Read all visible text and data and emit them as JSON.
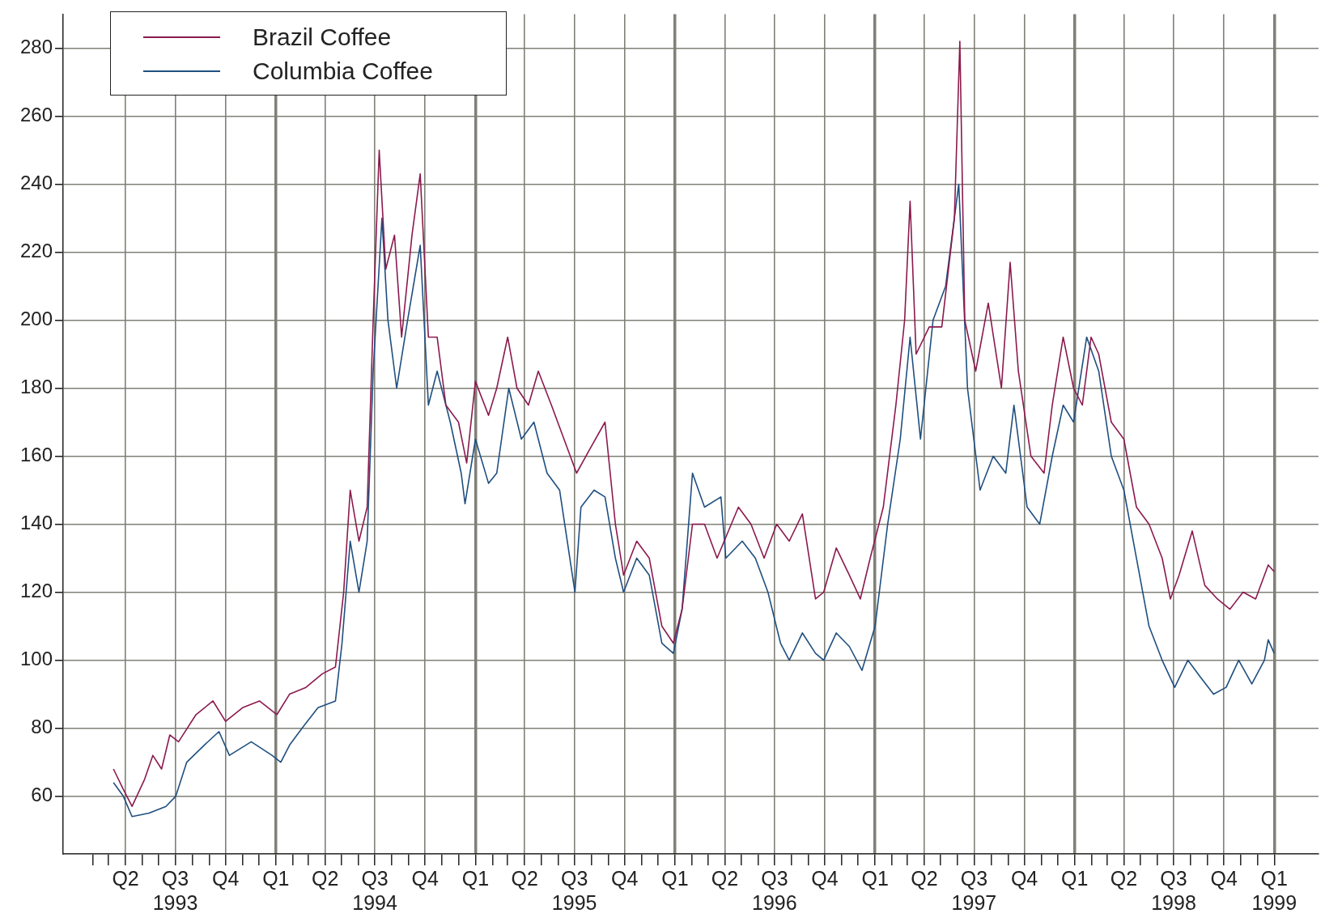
{
  "chart_data": {
    "type": "line",
    "legend": "top left",
    "grid": true,
    "marker": "none",
    "line_style": "solid",
    "xlim": [
      "1992-12-08",
      "1999-03-23"
    ],
    "ylim": [
      43,
      290
    ],
    "yticks": [
      60,
      80,
      100,
      120,
      140,
      160,
      180,
      200,
      220,
      240,
      260,
      280
    ],
    "xticks": [
      {
        "value": "1993-02-01",
        "label": null
      },
      {
        "value": "1993-03-01",
        "label": null
      },
      {
        "value": "1993-04-01",
        "label": "Q2"
      },
      {
        "value": "1993-05-01",
        "label": null
      },
      {
        "value": "1993-06-01",
        "label": null
      },
      {
        "value": "1993-07-01",
        "label": "Q3\n1993"
      },
      {
        "value": "1993-08-01",
        "label": null
      },
      {
        "value": "1993-09-01",
        "label": null
      },
      {
        "value": "1993-10-01",
        "label": "Q4"
      },
      {
        "value": "1993-11-01",
        "label": null
      },
      {
        "value": "1993-12-01",
        "label": null
      },
      {
        "value": "1994-01-01",
        "label": "Q1"
      },
      {
        "value": "1994-02-01",
        "label": null
      },
      {
        "value": "1994-03-01",
        "label": null
      },
      {
        "value": "1994-04-01",
        "label": "Q2"
      },
      {
        "value": "1994-05-01",
        "label": null
      },
      {
        "value": "1994-06-01",
        "label": null
      },
      {
        "value": "1994-07-01",
        "label": "Q3\n1994"
      },
      {
        "value": "1994-08-01",
        "label": null
      },
      {
        "value": "1994-09-01",
        "label": null
      },
      {
        "value": "1994-10-01",
        "label": "Q4"
      },
      {
        "value": "1994-11-01",
        "label": null
      },
      {
        "value": "1994-12-01",
        "label": null
      },
      {
        "value": "1995-01-01",
        "label": "Q1"
      },
      {
        "value": "1995-02-01",
        "label": null
      },
      {
        "value": "1995-03-01",
        "label": null
      },
      {
        "value": "1995-04-01",
        "label": "Q2"
      },
      {
        "value": "1995-05-01",
        "label": null
      },
      {
        "value": "1995-06-01",
        "label": null
      },
      {
        "value": "1995-07-01",
        "label": "Q3\n1995"
      },
      {
        "value": "1995-08-01",
        "label": null
      },
      {
        "value": "1995-09-01",
        "label": null
      },
      {
        "value": "1995-10-01",
        "label": "Q4"
      },
      {
        "value": "1995-11-01",
        "label": null
      },
      {
        "value": "1995-12-01",
        "label": null
      },
      {
        "value": "1996-01-01",
        "label": "Q1"
      },
      {
        "value": "1996-02-01",
        "label": null
      },
      {
        "value": "1996-03-01",
        "label": null
      },
      {
        "value": "1996-04-01",
        "label": "Q2"
      },
      {
        "value": "1996-05-01",
        "label": null
      },
      {
        "value": "1996-06-01",
        "label": null
      },
      {
        "value": "1996-07-01",
        "label": "Q3\n1996"
      },
      {
        "value": "1996-08-01",
        "label": null
      },
      {
        "value": "1996-09-01",
        "label": null
      },
      {
        "value": "1996-10-01",
        "label": "Q4"
      },
      {
        "value": "1996-11-01",
        "label": null
      },
      {
        "value": "1996-12-01",
        "label": null
      },
      {
        "value": "1997-01-01",
        "label": "Q1"
      },
      {
        "value": "1997-02-01",
        "label": null
      },
      {
        "value": "1997-03-01",
        "label": null
      },
      {
        "value": "1997-04-01",
        "label": "Q2"
      },
      {
        "value": "1997-05-01",
        "label": null
      },
      {
        "value": "1997-06-01",
        "label": null
      },
      {
        "value": "1997-07-01",
        "label": "Q3\n1997"
      },
      {
        "value": "1997-08-01",
        "label": null
      },
      {
        "value": "1997-09-01",
        "label": null
      },
      {
        "value": "1997-10-01",
        "label": "Q4"
      },
      {
        "value": "1997-11-01",
        "label": null
      },
      {
        "value": "1997-12-01",
        "label": null
      },
      {
        "value": "1998-01-01",
        "label": "Q1"
      },
      {
        "value": "1998-02-01",
        "label": null
      },
      {
        "value": "1998-03-01",
        "label": null
      },
      {
        "value": "1998-04-01",
        "label": "Q2"
      },
      {
        "value": "1998-05-01",
        "label": null
      },
      {
        "value": "1998-06-01",
        "label": null
      },
      {
        "value": "1998-07-01",
        "label": "Q3\n1998"
      },
      {
        "value": "1998-08-01",
        "label": null
      },
      {
        "value": "1998-09-01",
        "label": null
      },
      {
        "value": "1998-10-01",
        "label": "Q4"
      },
      {
        "value": "1998-11-01",
        "label": null
      },
      {
        "value": "1998-12-01",
        "label": null
      },
      {
        "value": "1999-01-01",
        "label": "Q1\n1999"
      }
    ],
    "series": [
      {
        "name": "Brazil Coffee",
        "color": "#8b1a4e",
        "x": [
          "1993-03-10",
          "1993-03-28",
          "1993-04-13",
          "1993-05-06",
          "1993-05-21",
          "1993-06-06",
          "1993-06-21",
          "1993-07-07",
          "1993-08-08",
          "1993-09-08",
          "1993-10-01",
          "1993-11-01",
          "1993-12-02",
          "1994-01-03",
          "1994-01-26",
          "1994-02-25",
          "1994-03-27",
          "1994-04-20",
          "1994-05-05",
          "1994-05-17",
          "1994-06-02",
          "1994-06-17",
          "1994-06-28",
          "1994-07-09",
          "1994-07-21",
          "1994-08-06",
          "1994-08-19",
          "1994-09-07",
          "1994-09-22",
          "1994-10-07",
          "1994-10-23",
          "1994-11-08",
          "1994-12-01",
          "1994-12-16",
          "1995-01-01",
          "1995-01-25",
          "1995-02-09",
          "1995-03-01",
          "1995-03-18",
          "1995-04-08",
          "1995-04-26",
          "1995-05-20",
          "1995-06-12",
          "1995-07-05",
          "1995-07-29",
          "1995-08-26",
          "1995-09-14",
          "1995-09-29",
          "1995-10-23",
          "1995-11-15",
          "1995-12-08",
          "1995-12-29",
          "1996-01-14",
          "1996-02-02",
          "1996-02-24",
          "1996-03-18",
          "1996-04-26",
          "1996-05-19",
          "1996-06-12",
          "1996-07-05",
          "1996-07-28",
          "1996-08-21",
          "1996-09-14",
          "1996-09-29",
          "1996-10-22",
          "1996-11-15",
          "1996-12-05",
          "1996-12-23",
          "1997-01-16",
          "1997-02-08",
          "1997-02-24",
          "1997-03-06",
          "1997-03-17",
          "1997-04-10",
          "1997-05-03",
          "1997-05-26",
          "1997-06-05",
          "1997-06-14",
          "1997-07-04",
          "1997-07-27",
          "1997-08-20",
          "1997-09-05",
          "1997-09-20",
          "1997-10-13",
          "1997-11-06",
          "1997-11-21",
          "1997-12-11",
          "1997-12-30",
          "1998-01-15",
          "1998-01-31",
          "1998-02-14",
          "1998-03-09",
          "1998-04-01",
          "1998-04-24",
          "1998-05-17",
          "1998-06-10",
          "1998-06-25",
          "1998-07-11",
          "1998-08-04",
          "1998-08-27",
          "1998-09-19",
          "1998-10-12",
          "1998-11-05",
          "1998-11-28",
          "1998-12-21",
          "1999-01-01"
        ],
        "values": [
          68,
          62,
          57,
          65,
          72,
          68,
          78,
          76,
          84,
          88,
          82,
          86,
          88,
          84,
          90,
          92,
          96,
          98,
          120,
          150,
          135,
          145,
          200,
          250,
          215,
          225,
          195,
          225,
          243,
          195,
          195,
          175,
          170,
          158,
          182,
          172,
          180,
          195,
          180,
          175,
          185,
          175,
          165,
          155,
          162,
          170,
          140,
          125,
          135,
          130,
          110,
          105,
          115,
          140,
          140,
          130,
          145,
          140,
          130,
          140,
          135,
          143,
          118,
          120,
          133,
          125,
          118,
          130,
          145,
          175,
          200,
          235,
          190,
          198,
          198,
          230,
          282,
          200,
          185,
          205,
          180,
          217,
          185,
          160,
          155,
          175,
          195,
          180,
          175,
          195,
          190,
          170,
          165,
          145,
          140,
          130,
          118,
          125,
          138,
          122,
          118,
          115,
          120,
          118,
          128,
          126
        ]
      },
      {
        "name": "Columbia Coffee",
        "color": "#1f4f7f",
        "x": [
          "1993-03-10",
          "1993-03-28",
          "1993-04-13",
          "1993-05-14",
          "1993-06-14",
          "1993-07-02",
          "1993-07-22",
          "1993-08-23",
          "1993-09-19",
          "1993-10-08",
          "1993-11-17",
          "1993-12-25",
          "1994-01-10",
          "1994-01-26",
          "1994-02-18",
          "1994-03-19",
          "1994-04-20",
          "1994-05-02",
          "1994-05-17",
          "1994-06-02",
          "1994-06-17",
          "1994-06-28",
          "1994-07-14",
          "1994-07-25",
          "1994-08-10",
          "1994-08-30",
          "1994-09-22",
          "1994-10-07",
          "1994-10-23",
          "1994-11-16",
          "1994-12-06",
          "1994-12-13",
          "1995-01-01",
          "1995-01-25",
          "1995-02-09",
          "1995-03-03",
          "1995-03-26",
          "1995-04-18",
          "1995-05-12",
          "1995-06-04",
          "1995-07-02",
          "1995-07-13",
          "1995-08-06",
          "1995-08-26",
          "1995-09-14",
          "1995-09-29",
          "1995-10-23",
          "1995-11-15",
          "1995-12-08",
          "1995-12-29",
          "1996-01-14",
          "1996-02-02",
          "1996-02-24",
          "1996-03-25",
          "1996-04-03",
          "1996-05-03",
          "1996-05-27",
          "1996-06-19",
          "1996-07-12",
          "1996-07-28",
          "1996-08-21",
          "1996-09-14",
          "1996-09-29",
          "1996-10-22",
          "1996-11-15",
          "1996-12-08",
          "1997-01-01",
          "1997-01-24",
          "1997-02-16",
          "1997-03-06",
          "1997-03-25",
          "1997-04-17",
          "1997-05-10",
          "1997-06-03",
          "1997-06-19",
          "1997-07-12",
          "1997-08-05",
          "1997-08-28",
          "1997-09-12",
          "1997-10-06",
          "1997-10-29",
          "1997-11-21",
          "1997-12-11",
          "1997-12-30",
          "1998-01-23",
          "1998-02-14",
          "1998-03-09",
          "1998-04-01",
          "1998-04-24",
          "1998-05-17",
          "1998-06-10",
          "1998-07-03",
          "1998-07-27",
          "1998-08-19",
          "1998-09-12",
          "1998-10-05",
          "1998-10-28",
          "1998-11-21",
          "1998-12-14",
          "1998-12-21",
          "1999-01-01"
        ],
        "values": [
          64,
          60,
          54,
          55,
          57,
          60,
          70,
          75,
          79,
          72,
          76,
          72,
          70,
          75,
          80,
          86,
          88,
          105,
          135,
          120,
          135,
          185,
          230,
          200,
          180,
          200,
          222,
          175,
          185,
          170,
          155,
          146,
          165,
          152,
          155,
          180,
          165,
          170,
          155,
          150,
          120,
          145,
          150,
          148,
          130,
          120,
          130,
          125,
          105,
          102,
          115,
          155,
          145,
          148,
          130,
          135,
          130,
          120,
          105,
          100,
          108,
          102,
          100,
          108,
          104,
          97,
          110,
          140,
          165,
          195,
          165,
          200,
          210,
          240,
          180,
          150,
          160,
          155,
          175,
          145,
          140,
          160,
          175,
          170,
          195,
          185,
          160,
          150,
          130,
          110,
          100,
          92,
          100,
          95,
          90,
          92,
          100,
          93,
          100,
          106,
          102
        ]
      }
    ]
  }
}
